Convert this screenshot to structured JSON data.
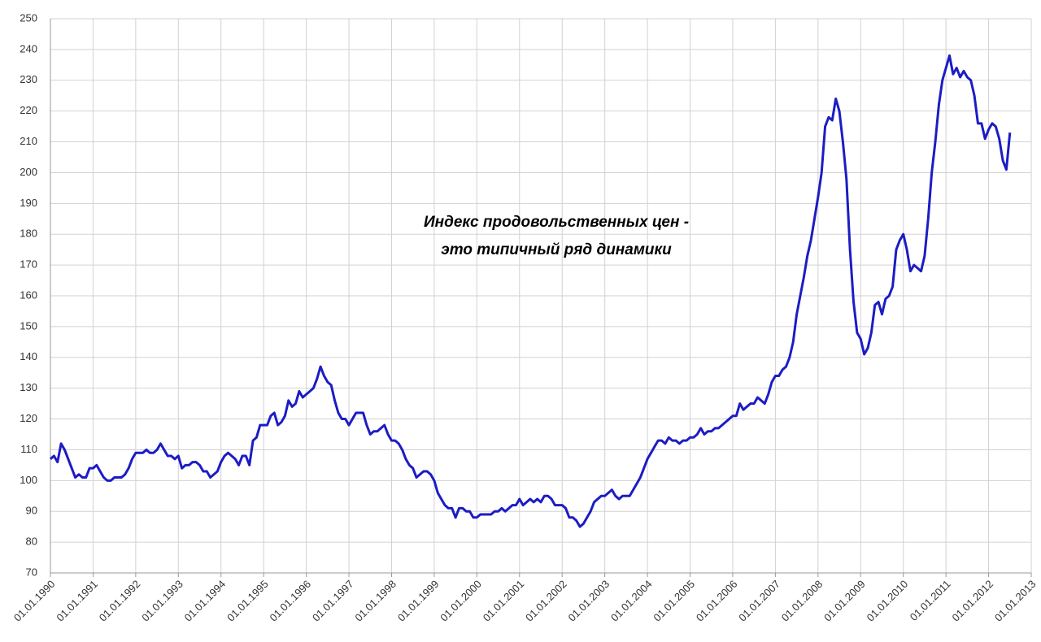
{
  "chart_data": {
    "type": "line",
    "annotation": [
      "Индекс продовольственных цен -",
      "это типичный ряд динамики"
    ],
    "x": [
      "01.01.1990",
      "01.02.1990",
      "01.03.1990",
      "01.04.1990",
      "01.05.1990",
      "01.06.1990",
      "01.07.1990",
      "01.08.1990",
      "01.09.1990",
      "01.10.1990",
      "01.11.1990",
      "01.12.1990",
      "01.01.1991",
      "01.02.1991",
      "01.03.1991",
      "01.04.1991",
      "01.05.1991",
      "01.06.1991",
      "01.07.1991",
      "01.08.1991",
      "01.09.1991",
      "01.10.1991",
      "01.11.1991",
      "01.12.1991",
      "01.01.1992",
      "01.02.1992",
      "01.03.1992",
      "01.04.1992",
      "01.05.1992",
      "01.06.1992",
      "01.07.1992",
      "01.08.1992",
      "01.09.1992",
      "01.10.1992",
      "01.11.1992",
      "01.12.1992",
      "01.01.1993",
      "01.02.1993",
      "01.03.1993",
      "01.04.1993",
      "01.05.1993",
      "01.06.1993",
      "01.07.1993",
      "01.08.1993",
      "01.09.1993",
      "01.10.1993",
      "01.11.1993",
      "01.12.1993",
      "01.01.1994",
      "01.02.1994",
      "01.03.1994",
      "01.04.1994",
      "01.05.1994",
      "01.06.1994",
      "01.07.1994",
      "01.08.1994",
      "01.09.1994",
      "01.10.1994",
      "01.11.1994",
      "01.12.1994",
      "01.01.1995",
      "01.02.1995",
      "01.03.1995",
      "01.04.1995",
      "01.05.1995",
      "01.06.1995",
      "01.07.1995",
      "01.08.1995",
      "01.09.1995",
      "01.10.1995",
      "01.11.1995",
      "01.12.1995",
      "01.01.1996",
      "01.02.1996",
      "01.03.1996",
      "01.04.1996",
      "01.05.1996",
      "01.06.1996",
      "01.07.1996",
      "01.08.1996",
      "01.09.1996",
      "01.10.1996",
      "01.11.1996",
      "01.12.1996",
      "01.01.1997",
      "01.02.1997",
      "01.03.1997",
      "01.04.1997",
      "01.05.1997",
      "01.06.1997",
      "01.07.1997",
      "01.08.1997",
      "01.09.1997",
      "01.10.1997",
      "01.11.1997",
      "01.12.1997",
      "01.01.1998",
      "01.02.1998",
      "01.03.1998",
      "01.04.1998",
      "01.05.1998",
      "01.06.1998",
      "01.07.1998",
      "01.08.1998",
      "01.09.1998",
      "01.10.1998",
      "01.11.1998",
      "01.12.1998",
      "01.01.1999",
      "01.02.1999",
      "01.03.1999",
      "01.04.1999",
      "01.05.1999",
      "01.06.1999",
      "01.07.1999",
      "01.08.1999",
      "01.09.1999",
      "01.10.1999",
      "01.11.1999",
      "01.12.1999",
      "01.01.2000",
      "01.02.2000",
      "01.03.2000",
      "01.04.2000",
      "01.05.2000",
      "01.06.2000",
      "01.07.2000",
      "01.08.2000",
      "01.09.2000",
      "01.10.2000",
      "01.11.2000",
      "01.12.2000",
      "01.01.2001",
      "01.02.2001",
      "01.03.2001",
      "01.04.2001",
      "01.05.2001",
      "01.06.2001",
      "01.07.2001",
      "01.08.2001",
      "01.09.2001",
      "01.10.2001",
      "01.11.2001",
      "01.12.2001",
      "01.01.2002",
      "01.02.2002",
      "01.03.2002",
      "01.04.2002",
      "01.05.2002",
      "01.06.2002",
      "01.07.2002",
      "01.08.2002",
      "01.09.2002",
      "01.10.2002",
      "01.11.2002",
      "01.12.2002",
      "01.01.2003",
      "01.02.2003",
      "01.03.2003",
      "01.04.2003",
      "01.05.2003",
      "01.06.2003",
      "01.07.2003",
      "01.08.2003",
      "01.09.2003",
      "01.10.2003",
      "01.11.2003",
      "01.12.2003",
      "01.01.2004",
      "01.02.2004",
      "01.03.2004",
      "01.04.2004",
      "01.05.2004",
      "01.06.2004",
      "01.07.2004",
      "01.08.2004",
      "01.09.2004",
      "01.10.2004",
      "01.11.2004",
      "01.12.2004",
      "01.01.2005",
      "01.02.2005",
      "01.03.2005",
      "01.04.2005",
      "01.05.2005",
      "01.06.2005",
      "01.07.2005",
      "01.08.2005",
      "01.09.2005",
      "01.10.2005",
      "01.11.2005",
      "01.12.2005",
      "01.01.2006",
      "01.02.2006",
      "01.03.2006",
      "01.04.2006",
      "01.05.2006",
      "01.06.2006",
      "01.07.2006",
      "01.08.2006",
      "01.09.2006",
      "01.10.2006",
      "01.11.2006",
      "01.12.2006",
      "01.01.2007",
      "01.02.2007",
      "01.03.2007",
      "01.04.2007",
      "01.05.2007",
      "01.06.2007",
      "01.07.2007",
      "01.08.2007",
      "01.09.2007",
      "01.10.2007",
      "01.11.2007",
      "01.12.2007",
      "01.01.2008",
      "01.02.2008",
      "01.03.2008",
      "01.04.2008",
      "01.05.2008",
      "01.06.2008",
      "01.07.2008",
      "01.08.2008",
      "01.09.2008",
      "01.10.2008",
      "01.11.2008",
      "01.12.2008",
      "01.01.2009",
      "01.02.2009",
      "01.03.2009",
      "01.04.2009",
      "01.05.2009",
      "01.06.2009",
      "01.07.2009",
      "01.08.2009",
      "01.09.2009",
      "01.10.2009",
      "01.11.2009",
      "01.12.2009",
      "01.01.2010",
      "01.02.2010",
      "01.03.2010",
      "01.04.2010",
      "01.05.2010",
      "01.06.2010",
      "01.07.2010",
      "01.08.2010",
      "01.09.2010",
      "01.10.2010",
      "01.11.2010",
      "01.12.2010",
      "01.01.2011",
      "01.02.2011",
      "01.03.2011",
      "01.04.2011",
      "01.05.2011",
      "01.06.2011",
      "01.07.2011",
      "01.08.2011",
      "01.09.2011",
      "01.10.2011",
      "01.11.2011",
      "01.12.2011",
      "01.01.2012",
      "01.02.2012",
      "01.03.2012",
      "01.04.2012",
      "01.05.2012",
      "01.06.2012",
      "01.07.2012"
    ],
    "values": [
      107,
      108,
      106,
      112,
      110,
      107,
      104,
      101,
      102,
      101,
      101,
      104,
      104,
      105,
      103,
      101,
      100,
      100,
      101,
      101,
      101,
      102,
      104,
      107,
      109,
      109,
      109,
      110,
      109,
      109,
      110,
      112,
      110,
      108,
      108,
      107,
      108,
      104,
      105,
      105,
      106,
      106,
      105,
      103,
      103,
      101,
      102,
      103,
      106,
      108,
      109,
      108,
      107,
      105,
      108,
      108,
      105,
      113,
      114,
      118,
      118,
      118,
      121,
      122,
      118,
      119,
      121,
      126,
      124,
      125,
      129,
      127,
      128,
      129,
      130,
      133,
      137,
      134,
      132,
      131,
      126,
      122,
      120,
      120,
      118,
      120,
      122,
      122,
      122,
      118,
      115,
      116,
      116,
      117,
      118,
      115,
      113,
      113,
      112,
      110,
      107,
      105,
      104,
      101,
      102,
      103,
      103,
      102,
      100,
      96,
      94,
      92,
      91,
      91,
      88,
      91,
      91,
      90,
      90,
      88,
      88,
      89,
      89,
      89,
      89,
      90,
      90,
      91,
      90,
      91,
      92,
      92,
      94,
      92,
      93,
      94,
      93,
      94,
      93,
      95,
      95,
      94,
      92,
      92,
      92,
      91,
      88,
      88,
      87,
      85,
      86,
      88,
      90,
      93,
      94,
      95,
      95,
      96,
      97,
      95,
      94,
      95,
      95,
      95,
      97,
      99,
      101,
      104,
      107,
      109,
      111,
      113,
      113,
      112,
      114,
      113,
      113,
      112,
      113,
      113,
      114,
      114,
      115,
      117,
      115,
      116,
      116,
      117,
      117,
      118,
      119,
      120,
      121,
      121,
      125,
      123,
      124,
      125,
      125,
      127,
      126,
      125,
      128,
      132,
      134,
      134,
      136,
      137,
      140,
      145,
      154,
      160,
      166,
      173,
      178,
      185,
      192,
      200,
      215,
      218,
      217,
      224,
      220,
      210,
      198,
      175,
      158,
      148,
      146,
      141,
      143,
      148,
      157,
      158,
      154,
      159,
      160,
      163,
      175,
      178,
      180,
      175,
      168,
      170,
      169,
      168,
      173,
      185,
      200,
      210,
      222,
      230,
      234,
      238,
      232,
      234,
      231,
      233,
      231,
      230,
      225,
      216,
      216,
      211,
      214,
      216,
      215,
      211,
      204,
      201,
      213
    ],
    "color": "#1c1cc4",
    "xlim": [
      "01.01.1990",
      "01.01.2013"
    ],
    "xticks": [
      "01.01.1990",
      "01.01.1991",
      "01.01.1992",
      "01.01.1993",
      "01.01.1994",
      "01.01.1995",
      "01.01.1996",
      "01.01.1997",
      "01.01.1998",
      "01.01.1999",
      "01.01.2000",
      "01.01.2001",
      "01.01.2002",
      "01.01.2003",
      "01.01.2004",
      "01.01.2005",
      "01.01.2006",
      "01.01.2007",
      "01.01.2008",
      "01.01.2009",
      "01.01.2010",
      "01.01.2011",
      "01.01.2012",
      "01.01.2013"
    ],
    "ylim": [
      70,
      250
    ],
    "yticks": [
      70,
      80,
      90,
      100,
      110,
      120,
      130,
      140,
      150,
      160,
      170,
      180,
      190,
      200,
      210,
      220,
      230,
      240,
      250
    ],
    "grid": true
  }
}
